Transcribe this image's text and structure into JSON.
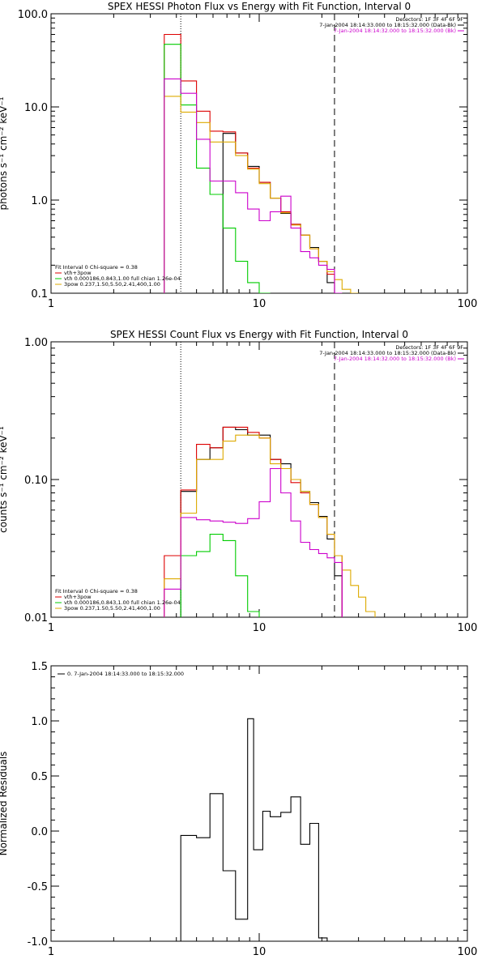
{
  "chart_data": [
    {
      "type": "line",
      "title": "SPEX HESSI Photon Flux vs Energy with Fit Function, Interval 0",
      "xlabel": "",
      "ylabel": "photons s⁻¹ cm⁻² keV⁻¹",
      "xscale": "log",
      "yscale": "log",
      "xlim": [
        1,
        100
      ],
      "ylim": [
        0.1,
        100
      ],
      "xtick_labels": [
        "1",
        "10",
        "100"
      ],
      "ytick_labels": [
        "0.1",
        "1.0",
        "10.0",
        "100.0"
      ],
      "reference_lines": [
        {
          "style": "dotted",
          "x": 4.2
        },
        {
          "style": "dashed",
          "x": 23
        }
      ],
      "legend_top": [
        {
          "text": "Detectors: 1F 3F 4F 6F 9F",
          "color": "#000000"
        },
        {
          "text": "7-Jan-2004 18:14:33.000 to 18:15:32.000 (Data-Bk)",
          "color": "#000000"
        },
        {
          "text": "7-Jan-2004 18:14:32.000 to 18:15:32.000 (Bk)",
          "color": "#cc00cc"
        }
      ],
      "legend_fit": [
        {
          "text": "Fit Interval 0    Chi-square = 0.38",
          "color": "#000000"
        },
        {
          "text": "vth+3pow",
          "color": "#dd0000"
        },
        {
          "text": "vth 0.000186,0.843,1.00   full chian 1.26e-04",
          "color": "#00cc00"
        },
        {
          "text": "3pow 0.237,1.50,5.50,2.41,400,1.00",
          "color": "#ddaa00"
        }
      ],
      "bin_edges": [
        3.0,
        3.5,
        4.2,
        5.0,
        5.8,
        6.7,
        7.7,
        8.8,
        10.0,
        11.3,
        12.7,
        14.2,
        15.8,
        17.5,
        19.3,
        21.2,
        23.0,
        25.0,
        27.5,
        30.0
      ],
      "series": [
        {
          "color": "#000000",
          "values": [
            null,
            null,
            null,
            null,
            null,
            5.2,
            3.2,
            2.3,
            1.55,
            1.05,
            0.72,
            0.55,
            0.42,
            0.31,
            0.22,
            0.13,
            null,
            null,
            null
          ]
        },
        {
          "color": "#dd0000",
          "values": [
            null,
            60,
            19,
            9.0,
            5.5,
            5.4,
            3.2,
            2.2,
            1.55,
            1.05,
            0.75,
            0.55,
            0.42,
            0.3,
            0.22,
            0.16,
            null,
            null,
            null
          ]
        },
        {
          "color": "#00cc00",
          "values": [
            null,
            47,
            10.5,
            2.2,
            1.15,
            0.5,
            0.22,
            0.13,
            0.09,
            null,
            null,
            null,
            null,
            null,
            null,
            null,
            null,
            null,
            null
          ]
        },
        {
          "color": "#ddaa00",
          "values": [
            null,
            13,
            8.8,
            6.8,
            4.2,
            4.2,
            3.0,
            2.15,
            1.5,
            1.05,
            0.73,
            0.54,
            0.42,
            0.3,
            0.22,
            0.17,
            0.14,
            0.11,
            0.095
          ]
        },
        {
          "color": "#cc00cc",
          "values": [
            null,
            20,
            14,
            4.5,
            1.6,
            1.6,
            1.2,
            0.8,
            0.6,
            0.75,
            1.1,
            0.5,
            0.28,
            0.24,
            0.2,
            0.18,
            0.1,
            null,
            null
          ]
        }
      ]
    },
    {
      "type": "line",
      "title": "SPEX HESSI Count Flux vs Energy with Fit Function, Interval 0",
      "xlabel": "",
      "ylabel": "counts s⁻¹ cm⁻² keV⁻¹",
      "xscale": "log",
      "yscale": "log",
      "xlim": [
        1,
        100
      ],
      "ylim": [
        0.01,
        1.0
      ],
      "xtick_labels": [
        "1",
        "10",
        "100"
      ],
      "ytick_labels": [
        "0.01",
        "0.10",
        "1.00"
      ],
      "reference_lines": [
        {
          "style": "dotted",
          "x": 4.2
        },
        {
          "style": "dashed",
          "x": 23
        }
      ],
      "legend_top": [
        {
          "text": "Detectors: 1F 3F 4F 6F 9F",
          "color": "#000000"
        },
        {
          "text": "7-Jan-2004 18:14:33.000 to 18:15:32.000 (Data-Bk)",
          "color": "#000000"
        },
        {
          "text": "7-Jan-2004 18:14:32.000 to 18:15:32.000 (Bk)",
          "color": "#cc00cc"
        }
      ],
      "legend_fit": [
        {
          "text": "Fit Interval 0    Chi-square = 0.38",
          "color": "#000000"
        },
        {
          "text": "vth+3pow",
          "color": "#dd0000"
        },
        {
          "text": "vth 0.000186,0.843,1.00   full chian 1.26e-04",
          "color": "#00cc00"
        },
        {
          "text": "3pow 0.237,1.50,5.50,2.41,400,1.00",
          "color": "#ddaa00"
        }
      ],
      "bin_edges": [
        3.0,
        3.5,
        4.2,
        5.0,
        5.8,
        6.7,
        7.7,
        8.8,
        10.0,
        11.3,
        12.7,
        14.2,
        15.8,
        17.5,
        19.3,
        21.2,
        23.0,
        25.0,
        27.5,
        30.0,
        32.5,
        36.0
      ],
      "series": [
        {
          "color": "#000000",
          "values": [
            null,
            null,
            0.082,
            0.14,
            0.17,
            0.24,
            0.23,
            0.21,
            0.21,
            0.14,
            0.13,
            0.1,
            0.082,
            0.068,
            0.054,
            0.037,
            0.02,
            null,
            null,
            null,
            null
          ]
        },
        {
          "color": "#dd0000",
          "values": [
            null,
            0.028,
            0.084,
            0.18,
            0.17,
            0.24,
            0.24,
            0.22,
            0.2,
            0.14,
            0.12,
            0.095,
            0.08,
            0.066,
            0.053,
            0.04,
            0.028,
            null,
            null,
            null,
            null
          ]
        },
        {
          "color": "#00cc00",
          "values": [
            null,
            null,
            0.028,
            0.03,
            0.04,
            0.036,
            0.02,
            0.011,
            null,
            null,
            null,
            null,
            null,
            null,
            null,
            null,
            null,
            null,
            null,
            null,
            null
          ]
        },
        {
          "color": "#ddaa00",
          "values": [
            null,
            0.019,
            0.057,
            0.14,
            0.14,
            0.19,
            0.21,
            0.21,
            0.2,
            0.13,
            0.12,
            0.1,
            0.082,
            0.066,
            0.053,
            0.04,
            0.028,
            0.022,
            0.017,
            0.014,
            0.011
          ]
        },
        {
          "color": "#cc00cc",
          "values": [
            null,
            0.016,
            0.053,
            0.051,
            0.05,
            0.049,
            0.048,
            0.052,
            0.069,
            0.12,
            0.08,
            0.05,
            0.035,
            0.031,
            0.029,
            0.027,
            0.025,
            null,
            null,
            null,
            null
          ]
        }
      ]
    },
    {
      "type": "line",
      "title": "",
      "xlabel": "",
      "ylabel": "Normalized Residuals",
      "xscale": "log",
      "yscale": "linear",
      "xlim": [
        1,
        100
      ],
      "ylim": [
        -1.0,
        1.5
      ],
      "xtick_labels": [
        "1",
        "10",
        "100"
      ],
      "ytick_labels": [
        "-1.0",
        "-0.5",
        "0.0",
        "0.5",
        "1.0",
        "1.5"
      ],
      "legend_top": [
        {
          "text": "0.  7-Jan-2004 18:14:33.000 to 18:15:32.000",
          "color": "#000000"
        }
      ],
      "bin_edges": [
        4.2,
        5.0,
        5.8,
        6.7,
        7.7,
        8.8,
        9.4,
        10.4,
        11.3,
        12.7,
        14.2,
        15.8,
        17.5,
        19.3,
        21.2
      ],
      "series": [
        {
          "color": "#000000",
          "values": [
            -0.04,
            -0.06,
            0.34,
            -0.36,
            -0.8,
            1.02,
            -0.17,
            0.18,
            0.13,
            0.17,
            0.31,
            -0.12,
            0.07,
            -0.97
          ]
        }
      ]
    }
  ]
}
